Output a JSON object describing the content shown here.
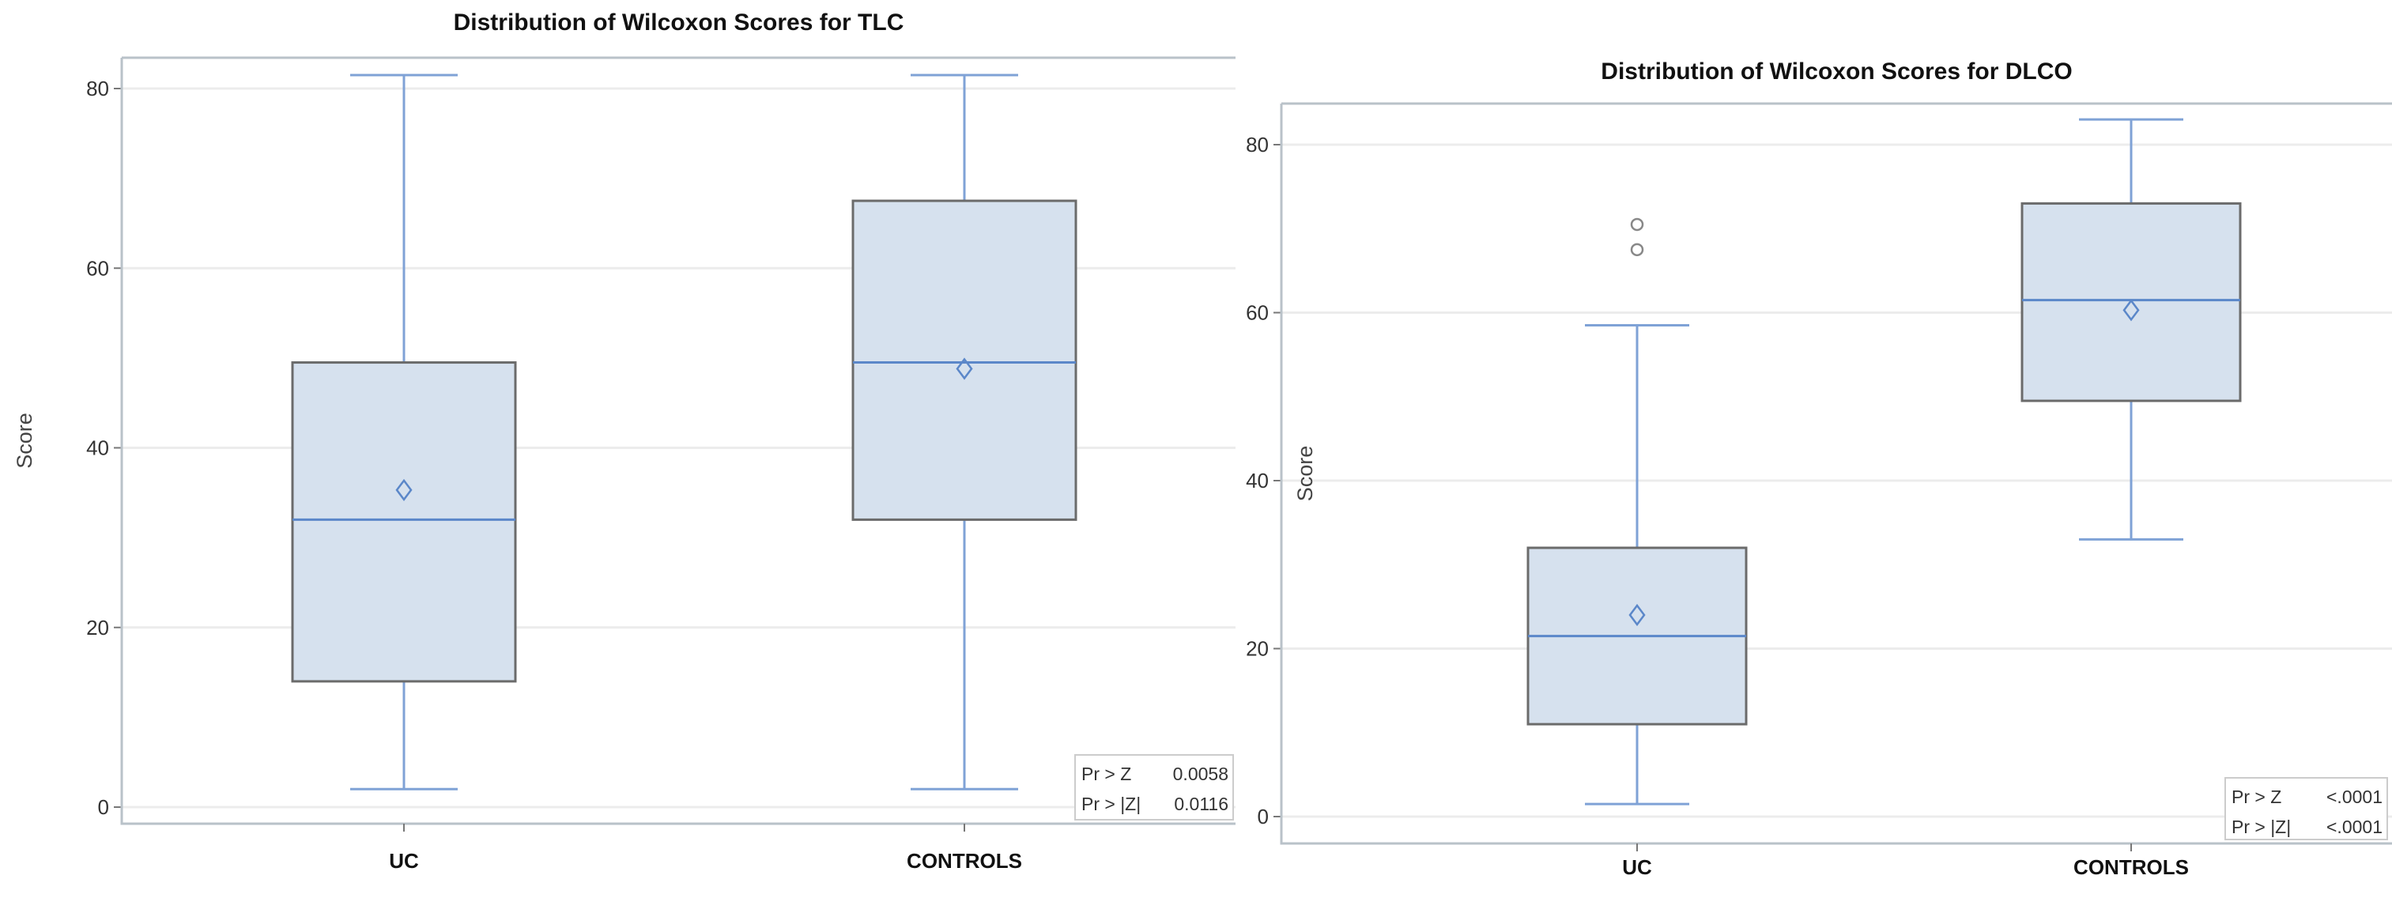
{
  "chart_data": [
    {
      "type": "box",
      "title": "Distribution of Wilcoxon Scores for TLC",
      "xlabel": "",
      "ylabel": "Score",
      "ylim": [
        0,
        80
      ],
      "yticks": [
        0,
        20,
        40,
        60,
        80
      ],
      "grid": true,
      "categories": [
        "UC",
        "CONTROLS"
      ],
      "boxes": [
        {
          "name": "UC",
          "min": 2,
          "q1": 14,
          "median": 32,
          "q3": 49.5,
          "max": 81.5,
          "mean": 35.3,
          "outliers": []
        },
        {
          "name": "CONTROLS",
          "min": 2,
          "q1": 32,
          "median": 49.5,
          "q3": 67.5,
          "max": 81.5,
          "mean": 48.8,
          "outliers": []
        }
      ],
      "inset": [
        {
          "label": "Pr > Z",
          "value": "0.0058"
        },
        {
          "label": "Pr > |Z|",
          "value": "0.0116"
        }
      ],
      "inset_placement": "bottom-right"
    },
    {
      "type": "box",
      "title": "Distribution of Wilcoxon Scores for DLCO",
      "xlabel": "",
      "ylabel": "Score",
      "ylim": [
        0,
        80
      ],
      "yticks": [
        0,
        20,
        40,
        60,
        80
      ],
      "grid": true,
      "categories": [
        "UC",
        "CONTROLS"
      ],
      "boxes": [
        {
          "name": "UC",
          "min": 1.5,
          "q1": 11,
          "median": 21.5,
          "q3": 32,
          "max": 58.5,
          "mean": 24,
          "outliers": [
            67.5,
            70.5
          ]
        },
        {
          "name": "CONTROLS",
          "min": 33,
          "q1": 49.5,
          "median": 61.5,
          "q3": 73,
          "max": 83,
          "mean": 60.3,
          "outliers": []
        }
      ],
      "inset": [
        {
          "label": "Pr > Z",
          "value": "<.0001"
        },
        {
          "label": "Pr > |Z|",
          "value": "<.0001"
        }
      ],
      "inset_placement": "bottom-right"
    }
  ],
  "colors": {
    "box_fill": "#d6e1ee",
    "box_edge": "#6b6b6b",
    "whisker": "#7fa2d6",
    "median": "#5b87c9",
    "grid": "#ececec",
    "frame": "#b9c2c9"
  }
}
